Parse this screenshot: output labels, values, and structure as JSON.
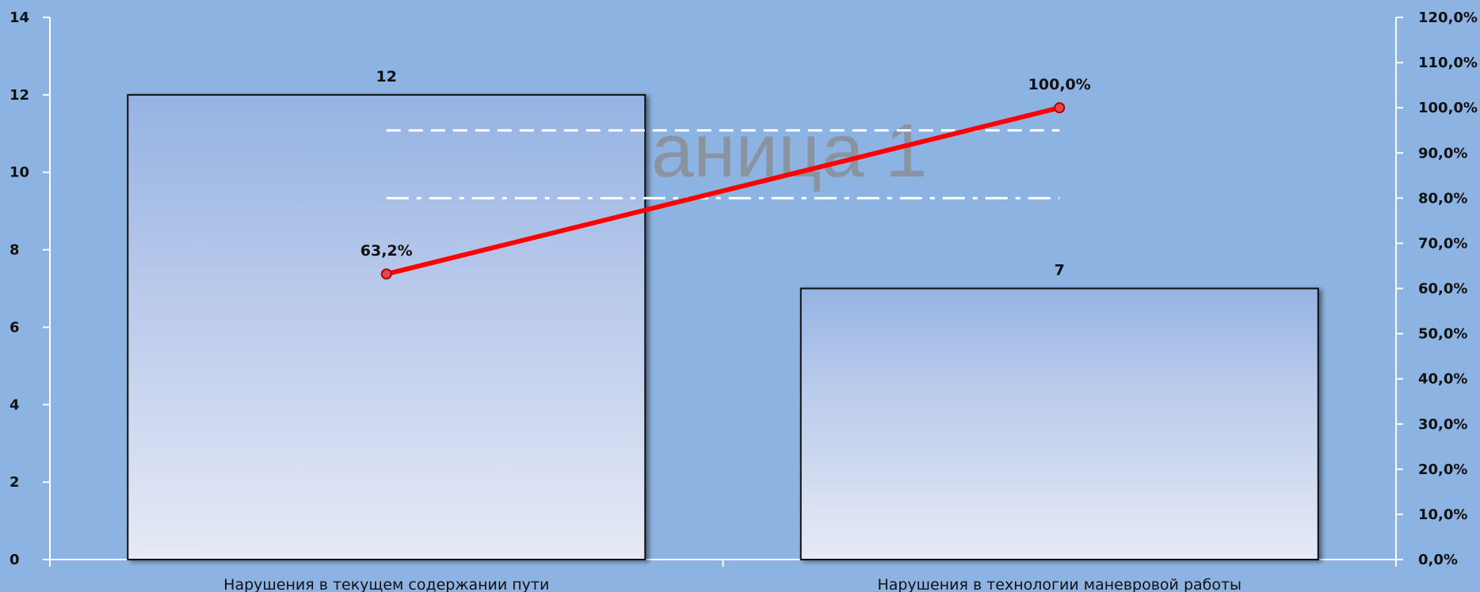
{
  "chart_data": {
    "type": "bar",
    "title": "",
    "watermark_text": "аница 1",
    "categories": [
      "Нарушения в текущем содержании пути",
      "Нарушения в технологии маневровой работы"
    ],
    "series": [
      {
        "kind": "bar",
        "axis": "left",
        "values": [
          12,
          7
        ],
        "value_labels": [
          "12",
          "7"
        ]
      },
      {
        "kind": "line",
        "axis": "right",
        "values": [
          63.2,
          100.0
        ],
        "value_labels": [
          "63,2%",
          "100,0%"
        ],
        "color": "#FF0000"
      }
    ],
    "reference_lines": [
      {
        "value": 95,
        "style": "dashed",
        "axis": "right"
      },
      {
        "value": 80,
        "style": "dash-dot",
        "axis": "right"
      }
    ],
    "y_left": {
      "ylim": [
        0,
        14
      ],
      "ticks": [
        "0",
        "2",
        "4",
        "6",
        "8",
        "10",
        "12",
        "14"
      ]
    },
    "y_right": {
      "ylim": [
        0,
        120
      ],
      "ticks": [
        "0,0%",
        "10,0%",
        "20,0%",
        "30,0%",
        "40,0%",
        "50,0%",
        "60,0%",
        "70,0%",
        "80,0%",
        "90,0%",
        "100,0%",
        "110,0%",
        "120,0%"
      ]
    },
    "colors": {
      "background": "#8DB3E2",
      "bar_top": "#95B3E3",
      "bar_bottom": "#E6EAF6",
      "line": "#FF0000",
      "reference": "#FFFFFF"
    },
    "grid": false
  }
}
